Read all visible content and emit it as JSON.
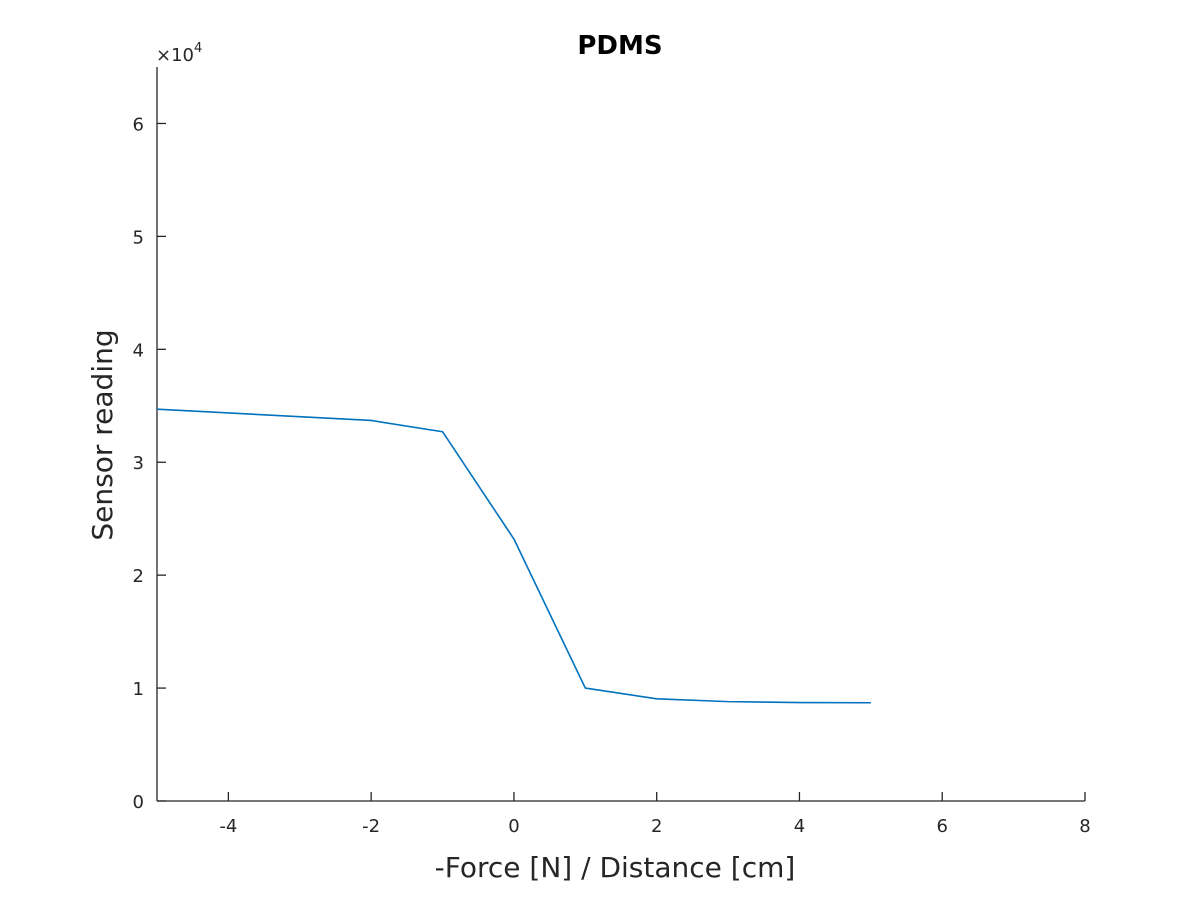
{
  "chart_data": {
    "type": "line",
    "title": "PDMS",
    "xlabel": "-Force [N] / Distance [cm]",
    "ylabel": "Sensor reading",
    "xlim": [
      -5,
      8
    ],
    "ylim": [
      0,
      65000
    ],
    "x_ticks": [
      -4,
      -2,
      0,
      2,
      4,
      6,
      8
    ],
    "y_ticks": [
      0,
      10000,
      20000,
      30000,
      40000,
      50000,
      60000
    ],
    "y_tick_labels": [
      "0",
      "1",
      "2",
      "3",
      "4",
      "5",
      "6"
    ],
    "y_exponent_prefix": "×10",
    "y_exponent": "4",
    "grid": false,
    "colors": {
      "series": "#0072BD",
      "axis": "#262626"
    },
    "series": [
      {
        "x": [
          -5,
          -2,
          -1,
          0,
          1,
          2,
          3,
          4,
          5
        ],
        "values": [
          34700,
          33700,
          32700,
          23200,
          10000,
          9050,
          8800,
          8720,
          8700
        ]
      }
    ]
  }
}
